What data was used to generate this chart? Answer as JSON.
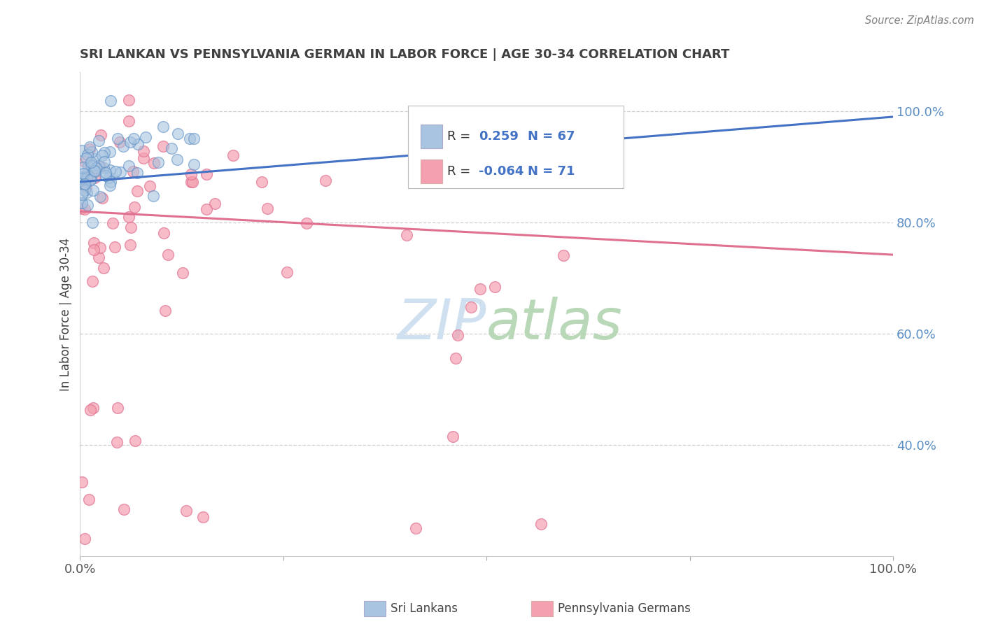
{
  "title": "SRI LANKAN VS PENNSYLVANIA GERMAN IN LABOR FORCE | AGE 30-34 CORRELATION CHART",
  "source": "Source: ZipAtlas.com",
  "ylabel": "In Labor Force | Age 30-34",
  "legend_entry1": {
    "label": "Sri Lankans",
    "R": 0.259,
    "N": 67,
    "color": "#a8c4e0"
  },
  "legend_entry2": {
    "label": "Pennsylvania Germans",
    "R": -0.064,
    "N": 71,
    "color": "#f4a0b0"
  },
  "blue_scatter_color": "#a8c4e0",
  "blue_edge_color": "#5b8ec4",
  "pink_scatter_color": "#f4a0b0",
  "pink_edge_color": "#e07090",
  "trend_blue": "#4472c4",
  "trend_pink": "#e07090",
  "blue_trend_y0": 0.873,
  "blue_trend_y1": 0.99,
  "pink_trend_y0": 0.82,
  "pink_trend_y1": 0.742,
  "xlim": [
    0.0,
    1.0
  ],
  "ylim": [
    0.2,
    1.07
  ],
  "yticks": [
    0.4,
    0.6,
    0.8,
    1.0
  ],
  "ytick_labels": [
    "40.0%",
    "60.0%",
    "80.0%",
    "100.0%"
  ],
  "background_color": "#ffffff",
  "grid_color": "#d0d0d0",
  "title_color": "#404040",
  "source_color": "#808080",
  "watermark_color": "#cfe0f0",
  "scatter_size": 130
}
